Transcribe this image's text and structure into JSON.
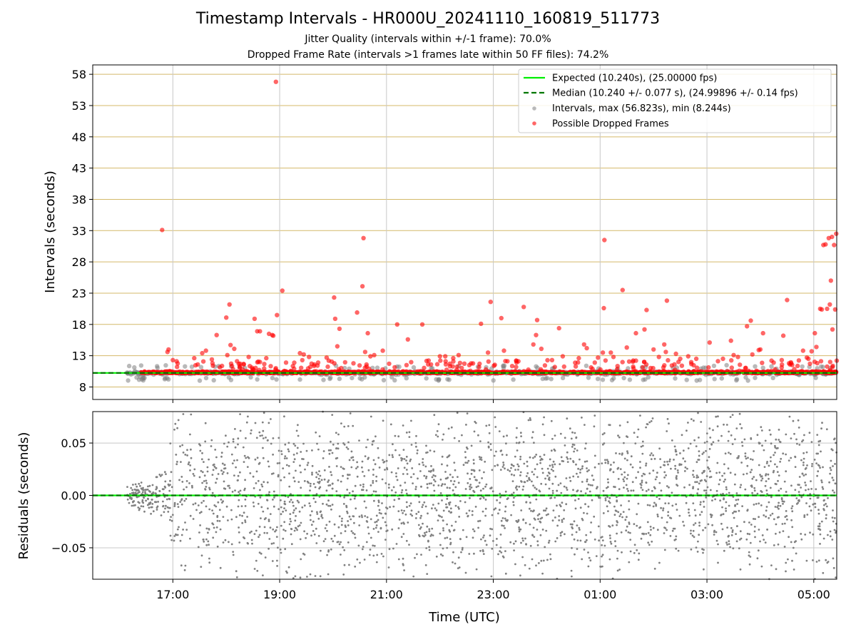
{
  "header": {
    "title": "Timestamp Intervals - HR000U_20241110_160819_511773",
    "subtitle1": "Jitter Quality (intervals within +/-1 frame): 70.0%",
    "subtitle2": "Dropped Frame Rate (intervals >1 frames late within 50 FF files): 74.2%"
  },
  "colors": {
    "expected": "#00ee00",
    "median": "#007700",
    "intervals": "#808080",
    "dropped": "#ff0000",
    "hgrid": "#d4b96a",
    "vgrid": "#c8c8c8"
  },
  "chart_data": [
    {
      "type": "scatter",
      "panel": "top",
      "ylabel": "Intervals (seconds)",
      "ylim": [
        6,
        59.5
      ],
      "y_ticks": [
        8,
        13,
        18,
        23,
        28,
        33,
        38,
        43,
        48,
        53,
        58
      ],
      "x_range_hours": [
        15.5,
        29.43
      ],
      "x_ticks": [
        {
          "h": 17,
          "label": "17:00"
        },
        {
          "h": 19,
          "label": "19:00"
        },
        {
          "h": 21,
          "label": "21:00"
        },
        {
          "h": 23,
          "label": "23:00"
        },
        {
          "h": 25,
          "label": "01:00"
        },
        {
          "h": 27,
          "label": "03:00"
        },
        {
          "h": 29,
          "label": "05:00"
        }
      ],
      "grid": true,
      "legend_position": "top-right",
      "legend": {
        "expected": "Expected (10.240s), (25.00000 fps)",
        "median": "Median (10.240 +/- 0.077 s), (24.99896 +/- 0.14 fps)",
        "intervals": "Intervals, max (56.823s), min (8.244s)",
        "dropped": "Possible Dropped Frames"
      },
      "expected_value": 10.24,
      "median_value": 10.24,
      "data_start_hour": 16.14,
      "data_end_hour": 29.43,
      "spikes": [
        {
          "x": 16.8,
          "y": 33.1
        },
        {
          "x": 16.9,
          "y": 13.6
        },
        {
          "x": 16.92,
          "y": 14.0
        },
        {
          "x": 17.0,
          "y": 12.3
        },
        {
          "x": 17.07,
          "y": 12.1
        },
        {
          "x": 17.4,
          "y": 12.6
        },
        {
          "x": 17.55,
          "y": 13.4
        },
        {
          "x": 17.62,
          "y": 13.8
        },
        {
          "x": 17.73,
          "y": 12.4
        },
        {
          "x": 17.75,
          "y": 11.4
        },
        {
          "x": 17.82,
          "y": 16.3
        },
        {
          "x": 18.0,
          "y": 19.1
        },
        {
          "x": 18.02,
          "y": 13.1
        },
        {
          "x": 18.06,
          "y": 21.2
        },
        {
          "x": 18.08,
          "y": 14.7
        },
        {
          "x": 18.15,
          "y": 14.1
        },
        {
          "x": 18.26,
          "y": 11.7
        },
        {
          "x": 18.42,
          "y": 12.8
        },
        {
          "x": 18.53,
          "y": 18.9
        },
        {
          "x": 18.58,
          "y": 16.9
        },
        {
          "x": 18.63,
          "y": 16.9
        },
        {
          "x": 18.75,
          "y": 12.6
        },
        {
          "x": 18.8,
          "y": 16.5
        },
        {
          "x": 18.86,
          "y": 16.3
        },
        {
          "x": 18.88,
          "y": 16.2
        },
        {
          "x": 18.93,
          "y": 56.8
        },
        {
          "x": 18.95,
          "y": 19.5
        },
        {
          "x": 19.05,
          "y": 23.4
        },
        {
          "x": 19.12,
          "y": 11.9
        },
        {
          "x": 19.27,
          "y": 10.9
        },
        {
          "x": 19.38,
          "y": 13.4
        },
        {
          "x": 19.45,
          "y": 13.2
        },
        {
          "x": 19.55,
          "y": 12.8
        },
        {
          "x": 19.65,
          "y": 11.6
        },
        {
          "x": 19.72,
          "y": 11.9
        },
        {
          "x": 19.88,
          "y": 12.7
        },
        {
          "x": 19.92,
          "y": 12.2
        },
        {
          "x": 20.02,
          "y": 22.3
        },
        {
          "x": 20.04,
          "y": 18.9
        },
        {
          "x": 20.08,
          "y": 14.5
        },
        {
          "x": 20.12,
          "y": 17.3
        },
        {
          "x": 20.45,
          "y": 19.9
        },
        {
          "x": 20.55,
          "y": 24.1
        },
        {
          "x": 20.57,
          "y": 31.8
        },
        {
          "x": 20.6,
          "y": 13.6
        },
        {
          "x": 20.65,
          "y": 16.6
        },
        {
          "x": 20.7,
          "y": 12.9
        },
        {
          "x": 20.77,
          "y": 13.1
        },
        {
          "x": 20.93,
          "y": 13.8
        },
        {
          "x": 21.2,
          "y": 18.0
        },
        {
          "x": 21.4,
          "y": 15.6
        },
        {
          "x": 21.67,
          "y": 18.0
        },
        {
          "x": 21.78,
          "y": 11.6
        },
        {
          "x": 22.0,
          "y": 12.9
        },
        {
          "x": 22.1,
          "y": 12.9
        },
        {
          "x": 22.25,
          "y": 12.6
        },
        {
          "x": 22.35,
          "y": 13.1
        },
        {
          "x": 22.55,
          "y": 11.5
        },
        {
          "x": 22.77,
          "y": 18.1
        },
        {
          "x": 22.9,
          "y": 13.5
        },
        {
          "x": 22.95,
          "y": 21.6
        },
        {
          "x": 23.15,
          "y": 19.0
        },
        {
          "x": 23.2,
          "y": 13.8
        },
        {
          "x": 23.47,
          "y": 12.1
        },
        {
          "x": 23.57,
          "y": 20.8
        },
        {
          "x": 23.75,
          "y": 14.8
        },
        {
          "x": 23.8,
          "y": 16.3
        },
        {
          "x": 23.82,
          "y": 18.7
        },
        {
          "x": 23.9,
          "y": 14.1
        },
        {
          "x": 24.1,
          "y": 12.3
        },
        {
          "x": 24.23,
          "y": 17.4
        },
        {
          "x": 24.3,
          "y": 12.9
        },
        {
          "x": 24.6,
          "y": 12.6
        },
        {
          "x": 24.7,
          "y": 14.8
        },
        {
          "x": 24.75,
          "y": 14.2
        },
        {
          "x": 24.9,
          "y": 11.9
        },
        {
          "x": 24.96,
          "y": 12.7
        },
        {
          "x": 25.05,
          "y": 13.5
        },
        {
          "x": 25.07,
          "y": 20.6
        },
        {
          "x": 25.08,
          "y": 31.5
        },
        {
          "x": 25.2,
          "y": 13.5
        },
        {
          "x": 25.25,
          "y": 12.8
        },
        {
          "x": 25.42,
          "y": 23.5
        },
        {
          "x": 25.5,
          "y": 14.3
        },
        {
          "x": 25.67,
          "y": 16.6
        },
        {
          "x": 25.83,
          "y": 17.2
        },
        {
          "x": 25.87,
          "y": 20.3
        },
        {
          "x": 26.0,
          "y": 14.0
        },
        {
          "x": 26.1,
          "y": 12.8
        },
        {
          "x": 26.2,
          "y": 14.8
        },
        {
          "x": 26.23,
          "y": 13.6
        },
        {
          "x": 26.25,
          "y": 21.8
        },
        {
          "x": 26.42,
          "y": 13.3
        },
        {
          "x": 26.5,
          "y": 12.5
        },
        {
          "x": 26.65,
          "y": 12.9
        },
        {
          "x": 26.8,
          "y": 12.5
        },
        {
          "x": 27.05,
          "y": 15.1
        },
        {
          "x": 27.3,
          "y": 12.5
        },
        {
          "x": 27.45,
          "y": 15.4
        },
        {
          "x": 27.5,
          "y": 13.1
        },
        {
          "x": 27.58,
          "y": 12.8
        },
        {
          "x": 27.75,
          "y": 17.7
        },
        {
          "x": 27.82,
          "y": 18.6
        },
        {
          "x": 27.85,
          "y": 13.2
        },
        {
          "x": 27.97,
          "y": 13.9
        },
        {
          "x": 28.0,
          "y": 14.0
        },
        {
          "x": 28.05,
          "y": 16.6
        },
        {
          "x": 28.25,
          "y": 11.9
        },
        {
          "x": 28.4,
          "y": 12.3
        },
        {
          "x": 28.43,
          "y": 16.2
        },
        {
          "x": 28.5,
          "y": 21.9
        },
        {
          "x": 28.8,
          "y": 13.8
        },
        {
          "x": 28.87,
          "y": 12.7
        },
        {
          "x": 28.9,
          "y": 12.5
        },
        {
          "x": 28.96,
          "y": 13.7
        },
        {
          "x": 29.02,
          "y": 16.6
        },
        {
          "x": 29.05,
          "y": 14.4
        },
        {
          "x": 29.12,
          "y": 20.5
        },
        {
          "x": 29.15,
          "y": 20.4
        },
        {
          "x": 29.18,
          "y": 30.7
        },
        {
          "x": 29.22,
          "y": 30.8
        },
        {
          "x": 29.25,
          "y": 20.5
        },
        {
          "x": 29.28,
          "y": 31.8
        },
        {
          "x": 29.3,
          "y": 21.2
        },
        {
          "x": 29.32,
          "y": 25.0
        },
        {
          "x": 29.34,
          "y": 32.0
        },
        {
          "x": 29.35,
          "y": 17.2
        },
        {
          "x": 29.38,
          "y": 30.7
        },
        {
          "x": 29.4,
          "y": 20.4
        },
        {
          "x": 29.42,
          "y": 32.5
        },
        {
          "x": 29.43,
          "y": 12.2
        }
      ]
    },
    {
      "type": "scatter",
      "panel": "bottom",
      "xlabel": "Time (UTC)",
      "ylabel": "Residuals (seconds)",
      "ylim": [
        -0.08,
        0.08
      ],
      "y_ticks": [
        {
          "v": 0.05,
          "label": "0.05"
        },
        {
          "v": 0.0,
          "label": "0.00"
        },
        {
          "v": -0.05,
          "label": "−0.05"
        }
      ],
      "residual_scatter": {
        "amplitude_start": 0.012,
        "amplitude_after_17h": 0.09,
        "start_hour": 16.14
      },
      "grid": true
    }
  ]
}
